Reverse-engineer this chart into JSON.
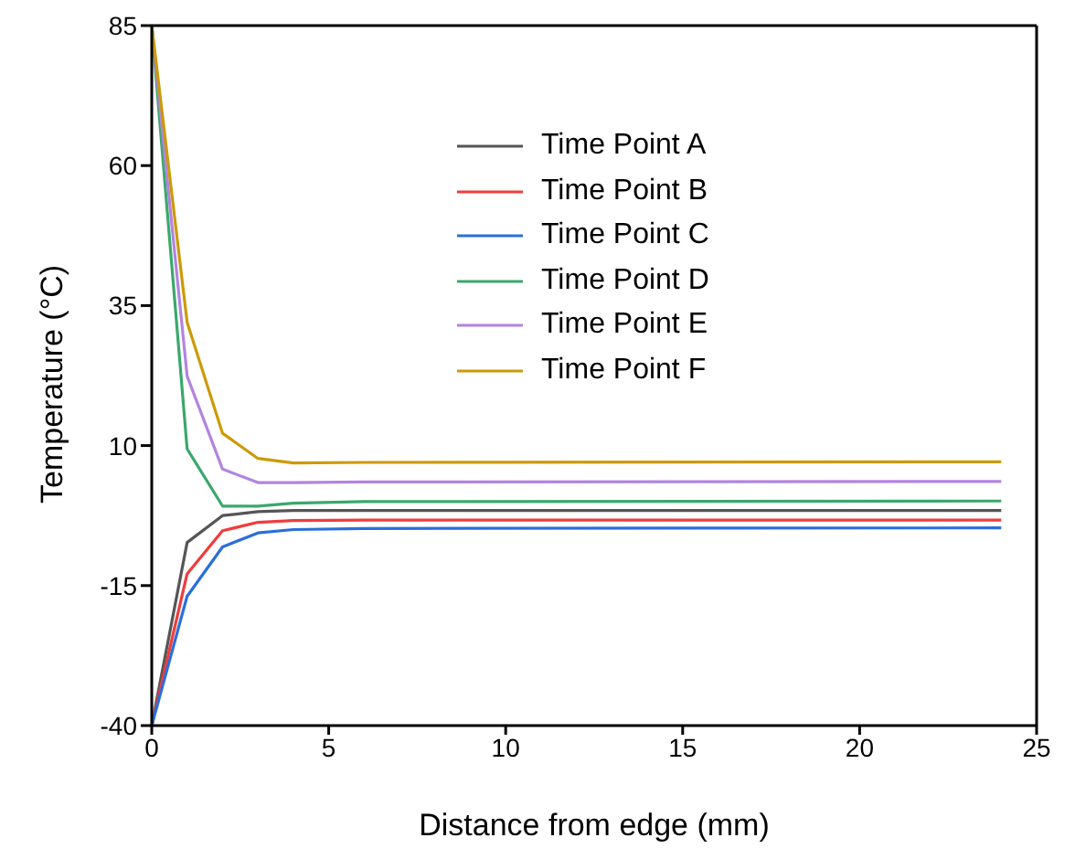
{
  "chart_data": {
    "type": "line",
    "xlabel": "Distance from edge (mm)",
    "ylabel": "Temperature (°C)",
    "xlim": [
      0,
      25
    ],
    "xticks": [
      0,
      5,
      10,
      15,
      20,
      25
    ],
    "ylim": [
      -40,
      85
    ],
    "yticks": [
      -40,
      -15,
      10,
      35,
      60,
      85
    ],
    "grid": false,
    "legend": "top",
    "marker": "none",
    "line_style": "solid",
    "x": [
      0,
      1,
      2,
      3,
      4,
      6,
      24
    ],
    "series": [
      {
        "name": "Time Point A",
        "color": "#555555",
        "values": [
          -40,
          -7.3,
          -2.5,
          -1.8,
          -1.6,
          -1.6,
          -1.6
        ]
      },
      {
        "name": "Time Point B",
        "color": "#f03c3c",
        "values": [
          -40,
          -12.9,
          -5.2,
          -3.7,
          -3.4,
          -3.3,
          -3.3
        ]
      },
      {
        "name": "Time Point C",
        "color": "#2a6fdb",
        "values": [
          -40,
          -16.9,
          -8.1,
          -5.6,
          -5,
          -4.8,
          -4.7
        ]
      },
      {
        "name": "Time Point D",
        "color": "#3aa86b",
        "values": [
          85,
          9.4,
          -0.8,
          -0.8,
          -0.3,
          0,
          0.1
        ]
      },
      {
        "name": "Time Point E",
        "color": "#b284e0",
        "values": [
          85,
          22.4,
          5.8,
          3.4,
          3.4,
          3.5,
          3.6
        ]
      },
      {
        "name": "Time Point F",
        "color": "#cc9a06",
        "values": [
          85,
          32,
          12.2,
          7.7,
          6.9,
          7,
          7.1
        ]
      }
    ]
  }
}
